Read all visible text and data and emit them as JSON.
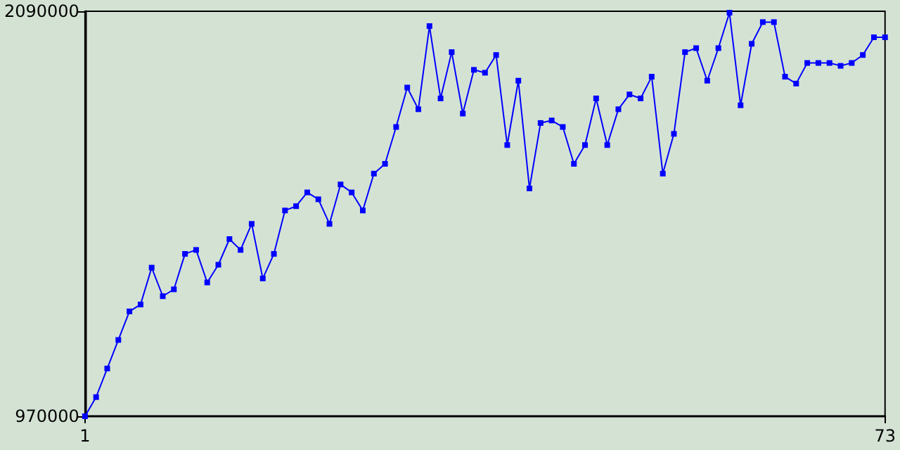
{
  "chart_data": {
    "type": "line",
    "x": [
      1,
      2,
      3,
      4,
      5,
      6,
      7,
      8,
      9,
      10,
      11,
      12,
      13,
      14,
      15,
      16,
      17,
      18,
      19,
      20,
      21,
      22,
      23,
      24,
      25,
      26,
      27,
      28,
      29,
      30,
      31,
      32,
      33,
      34,
      35,
      36,
      37,
      38,
      39,
      40,
      41,
      42,
      43,
      44,
      45,
      46,
      47,
      48,
      49,
      50,
      51,
      52,
      53,
      54,
      55,
      56,
      57,
      58,
      59,
      60,
      61,
      62,
      63,
      64,
      65,
      66,
      67,
      68,
      69,
      70,
      71,
      72,
      73
    ],
    "series": [
      {
        "color": "#0000ff",
        "values": [
          970000,
          1023000,
          1102000,
          1181000,
          1260000,
          1279000,
          1381000,
          1302000,
          1321000,
          1419000,
          1430000,
          1340000,
          1389000,
          1460000,
          1430000,
          1502000,
          1351000,
          1419000,
          1539000,
          1551000,
          1589000,
          1570000,
          1502000,
          1611000,
          1589000,
          1539000,
          1641000,
          1668000,
          1770000,
          1879000,
          1819000,
          2049000,
          1849000,
          1977000,
          1807000,
          1928000,
          1920000,
          1969000,
          1720000,
          1898000,
          1600000,
          1781000,
          1788000,
          1770000,
          1668000,
          1720000,
          1849000,
          1720000,
          1819000,
          1860000,
          1849000,
          1909000,
          1641000,
          1751000,
          1977000,
          1988000,
          1898000,
          1988000,
          2086000,
          1830000,
          2000000,
          2060000,
          2060000,
          1909000,
          1890000,
          1947000,
          1947000,
          1947000,
          1939000,
          1947000,
          1969000,
          2018000,
          2018000
        ]
      }
    ],
    "xlim": [
      1,
      73
    ],
    "xticks": [
      1,
      73
    ],
    "ylim": [
      970000,
      2090000
    ],
    "yticks": [
      970000,
      2090000
    ],
    "grid": false,
    "marker": "square",
    "line_style": "solid"
  }
}
